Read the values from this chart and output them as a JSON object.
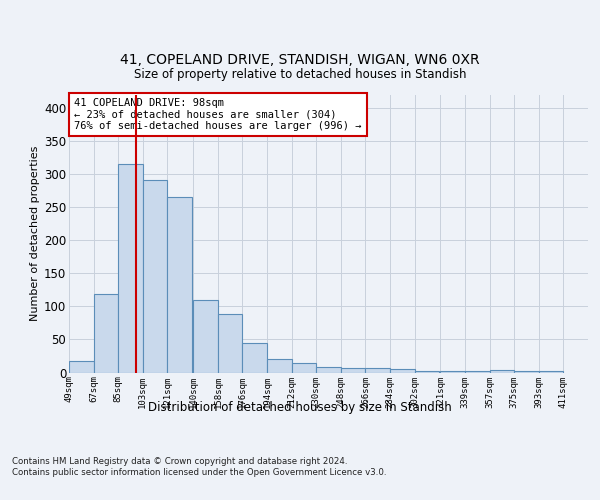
{
  "title1": "41, COPELAND DRIVE, STANDISH, WIGAN, WN6 0XR",
  "title2": "Size of property relative to detached houses in Standish",
  "xlabel": "Distribution of detached houses by size in Standish",
  "ylabel": "Number of detached properties",
  "bar_color": "#c9d9ec",
  "bar_edge_color": "#5b8db8",
  "bar_edge_width": 0.8,
  "vline_value": 98,
  "vline_color": "#cc0000",
  "categories": [
    "49sqm",
    "67sqm",
    "85sqm",
    "103sqm",
    "121sqm",
    "140sqm",
    "158sqm",
    "176sqm",
    "194sqm",
    "212sqm",
    "230sqm",
    "248sqm",
    "266sqm",
    "284sqm",
    "302sqm",
    "321sqm",
    "339sqm",
    "357sqm",
    "375sqm",
    "393sqm",
    "411sqm"
  ],
  "bin_starts": [
    49,
    67,
    85,
    103,
    121,
    140,
    158,
    176,
    194,
    212,
    230,
    248,
    266,
    284,
    302,
    321,
    339,
    357,
    375,
    393,
    411
  ],
  "bin_width": 18,
  "values": [
    18,
    119,
    315,
    292,
    265,
    109,
    88,
    44,
    20,
    15,
    8,
    7,
    7,
    5,
    2,
    2,
    2,
    4,
    2,
    3
  ],
  "ylim": [
    0,
    420
  ],
  "yticks": [
    0,
    50,
    100,
    150,
    200,
    250,
    300,
    350,
    400
  ],
  "annotation_text": "41 COPELAND DRIVE: 98sqm\n← 23% of detached houses are smaller (304)\n76% of semi-detached houses are larger (996) →",
  "annotation_box_color": "white",
  "annotation_box_edge": "#cc0000",
  "footer_text": "Contains HM Land Registry data © Crown copyright and database right 2024.\nContains public sector information licensed under the Open Government Licence v3.0.",
  "bg_color": "#eef2f8",
  "grid_color": "#c8d0dc"
}
